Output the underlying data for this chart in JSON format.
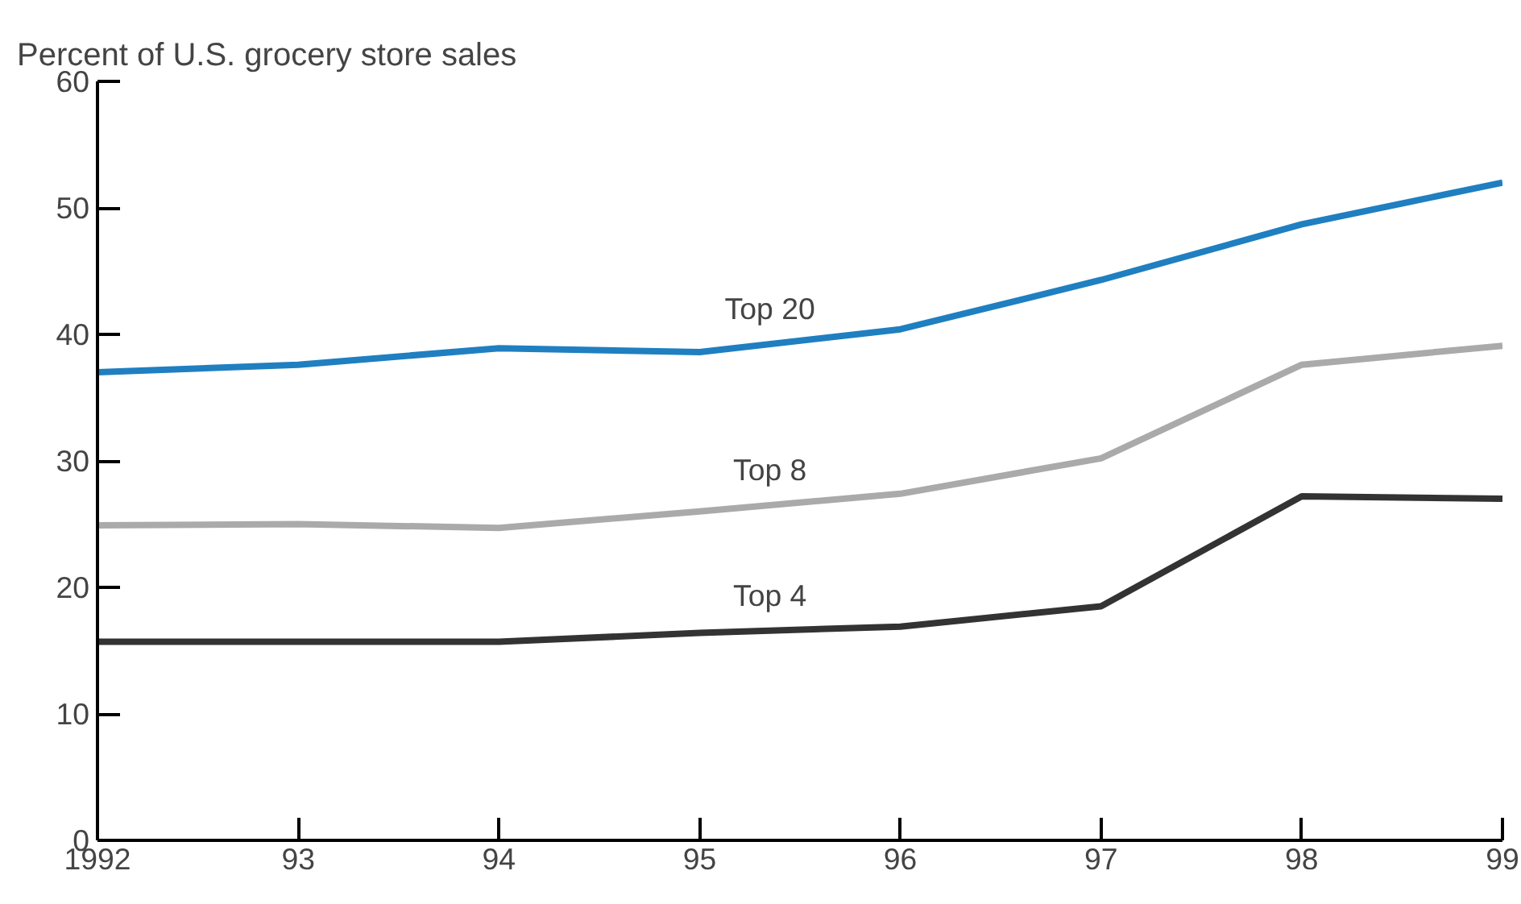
{
  "chart_data": {
    "type": "line",
    "ylabel": "Percent of U.S. grocery store sales",
    "x": [
      1992,
      1993,
      1994,
      1995,
      1996,
      1997,
      1998,
      1999
    ],
    "xlim": [
      1992,
      1999
    ],
    "xticks": [
      {
        "value": 1992,
        "label": "1992"
      },
      {
        "value": 1993,
        "label": "93"
      },
      {
        "value": 1994,
        "label": "94"
      },
      {
        "value": 1995,
        "label": "95"
      },
      {
        "value": 1996,
        "label": "96"
      },
      {
        "value": 1997,
        "label": "97"
      },
      {
        "value": 1998,
        "label": "98"
      },
      {
        "value": 1999,
        "label": "99"
      }
    ],
    "ylim": [
      0,
      60
    ],
    "yticks": [
      0,
      10,
      20,
      30,
      40,
      50,
      60
    ],
    "series": [
      {
        "name": "Top 20",
        "color": "#1f7fc0",
        "values": [
          37.0,
          37.6,
          38.9,
          38.6,
          40.4,
          44.3,
          48.7,
          52.0
        ]
      },
      {
        "name": "Top 8",
        "color": "#aaaaaa",
        "values": [
          24.9,
          25.0,
          24.7,
          26.0,
          27.4,
          30.2,
          37.6,
          39.1
        ]
      },
      {
        "name": "Top 4",
        "color": "#333333",
        "values": [
          15.7,
          15.7,
          15.7,
          16.4,
          16.9,
          18.5,
          27.2,
          27.0
        ]
      }
    ],
    "grid": false,
    "marker": "none",
    "line_style": "solid"
  }
}
